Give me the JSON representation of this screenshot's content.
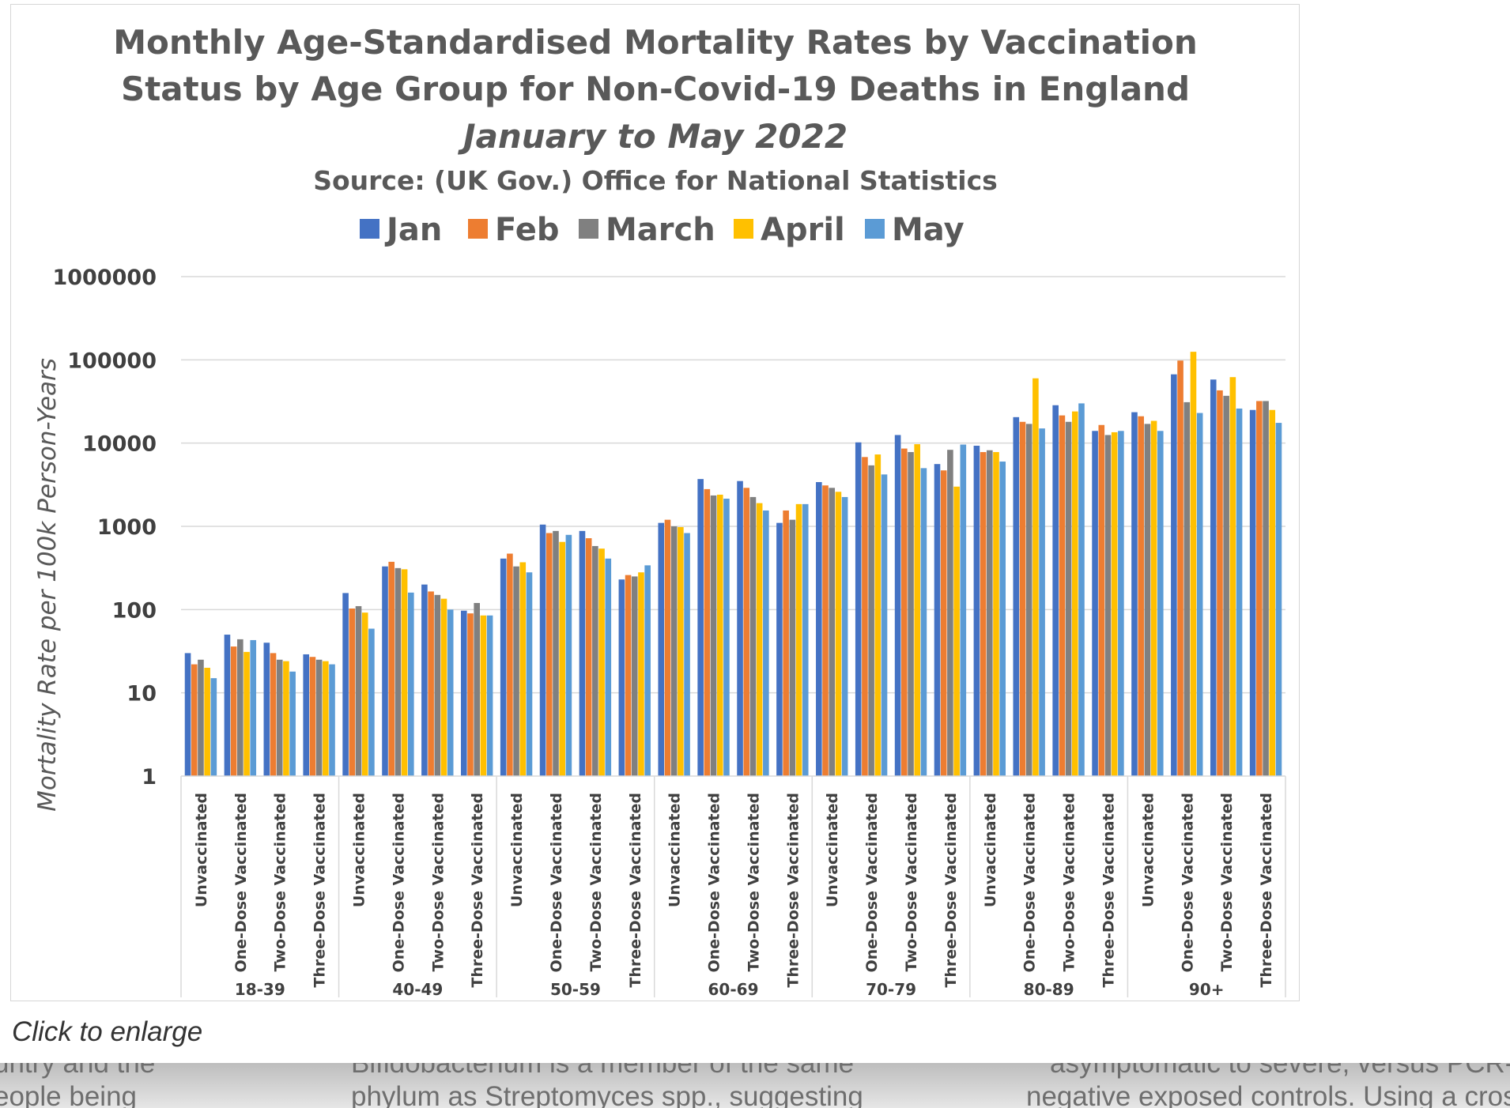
{
  "caption": "Click to enlarge",
  "background_text": [
    {
      "line1": "untry and the",
      "line2": "eople being"
    },
    {
      "line1": "Bifidobacterium is a member of the same",
      "line2": "phylum as Streptomyces spp., suggesting"
    },
    {
      "line1": "asymptomatic to severe, versus PCR-",
      "line2": "negative exposed controls. Using a cross"
    }
  ],
  "chart_data": {
    "type": "bar",
    "scale": "log",
    "title_line1": "Monthly Age-Standardised Mortality Rates by Vaccination",
    "title_line2": "Status by Age Group for Non-Covid-19 Deaths in England",
    "subtitle": "January to May 2022",
    "source": "Source: (UK Gov.) Office for National Statistics",
    "ylabel": "Mortality Rate per 100k Person-Years",
    "ylim": [
      1,
      1000000
    ],
    "yticks": [
      "1",
      "10",
      "100",
      "1000",
      "10000",
      "100000",
      "1000000"
    ],
    "legend_position": "top",
    "series": [
      {
        "name": "Jan",
        "color": "#4472C4"
      },
      {
        "name": "Feb",
        "color": "#ED7D31"
      },
      {
        "name": "March",
        "color": "#808080"
      },
      {
        "name": "April",
        "color": "#FFC000"
      },
      {
        "name": "May",
        "color": "#5B9BD5"
      }
    ],
    "groups": [
      {
        "label": "18-39",
        "categories": [
          {
            "label": "Unvaccinated",
            "values": [
              30,
              22,
              25,
              20,
              15
            ]
          },
          {
            "label": "One-Dose Vaccinated",
            "values": [
              50,
              36,
              44,
              31,
              43
            ]
          },
          {
            "label": "Two-Dose Vaccinated",
            "values": [
              40,
              30,
              25,
              24,
              18
            ]
          },
          {
            "label": "Three-Dose Vaccinated",
            "values": [
              29,
              27,
              25,
              24,
              22
            ]
          }
        ]
      },
      {
        "label": "40-49",
        "categories": [
          {
            "label": "Unvaccinated",
            "values": [
              158,
              103,
              110,
              92,
              59
            ]
          },
          {
            "label": "One-Dose Vaccinated",
            "values": [
              330,
              375,
              315,
              305,
              160
            ]
          },
          {
            "label": "Two-Dose Vaccinated",
            "values": [
              200,
              165,
              150,
              135,
              100
            ]
          },
          {
            "label": "Three-Dose Vaccinated",
            "values": [
              97,
              90,
              120,
              85,
              85
            ]
          }
        ]
      },
      {
        "label": "50-59",
        "categories": [
          {
            "label": "Unvaccinated",
            "values": [
              410,
              470,
              330,
              370,
              280
            ]
          },
          {
            "label": "One-Dose Vaccinated",
            "values": [
              1050,
              830,
              880,
              650,
              790
            ]
          },
          {
            "label": "Two-Dose Vaccinated",
            "values": [
              880,
              720,
              580,
              540,
              410
            ]
          },
          {
            "label": "Three-Dose Vaccinated",
            "values": [
              230,
              260,
              250,
              280,
              340
            ]
          }
        ]
      },
      {
        "label": "60-69",
        "categories": [
          {
            "label": "Unvaccinated",
            "values": [
              1100,
              1200,
              1000,
              980,
              830
            ]
          },
          {
            "label": "One-Dose Vaccinated",
            "values": [
              3700,
              2800,
              2350,
              2400,
              2150
            ]
          },
          {
            "label": "Two-Dose Vaccinated",
            "values": [
              3500,
              2900,
              2250,
              1900,
              1550
            ]
          },
          {
            "label": "Three-Dose Vaccinated",
            "values": [
              1100,
              1550,
              1200,
              1850,
              1850
            ]
          }
        ]
      },
      {
        "label": "70-79",
        "categories": [
          {
            "label": "Unvaccinated",
            "values": [
              3400,
              3100,
              2900,
              2600,
              2250
            ]
          },
          {
            "label": "One-Dose Vaccinated",
            "values": [
              10200,
              6800,
              5400,
              7300,
              4200
            ]
          },
          {
            "label": "Two-Dose Vaccinated",
            "values": [
              12500,
              8600,
              7800,
              9700,
              5000
            ]
          },
          {
            "label": "Three-Dose Vaccinated",
            "values": [
              5600,
              4700,
              8300,
              3000,
              9600
            ]
          }
        ]
      },
      {
        "label": "80-89",
        "categories": [
          {
            "label": "Unvaccinated",
            "values": [
              9300,
              7800,
              8200,
              7800,
              6000
            ]
          },
          {
            "label": "One-Dose Vaccinated",
            "values": [
              20500,
              18000,
              17000,
              60000,
              15000
            ]
          },
          {
            "label": "Two-Dose Vaccinated",
            "values": [
              28500,
              21500,
              18000,
              24000,
              30000
            ]
          },
          {
            "label": "Three-Dose Vaccinated",
            "values": [
              14000,
              16500,
              12500,
              13500,
              14000
            ]
          }
        ]
      },
      {
        "label": "90+",
        "categories": [
          {
            "label": "Unvaccinated",
            "values": [
              23500,
              21000,
              17000,
              18500,
              14000
            ]
          },
          {
            "label": "One-Dose Vaccinated",
            "values": [
              67000,
              98000,
              31000,
              125000,
              23000
            ]
          },
          {
            "label": "Two-Dose Vaccinated",
            "values": [
              58000,
              43000,
              37000,
              62000,
              26000
            ]
          },
          {
            "label": "Three-Dose Vaccinated",
            "values": [
              25000,
              32000,
              32000,
              25000,
              17500
            ]
          }
        ]
      }
    ]
  }
}
